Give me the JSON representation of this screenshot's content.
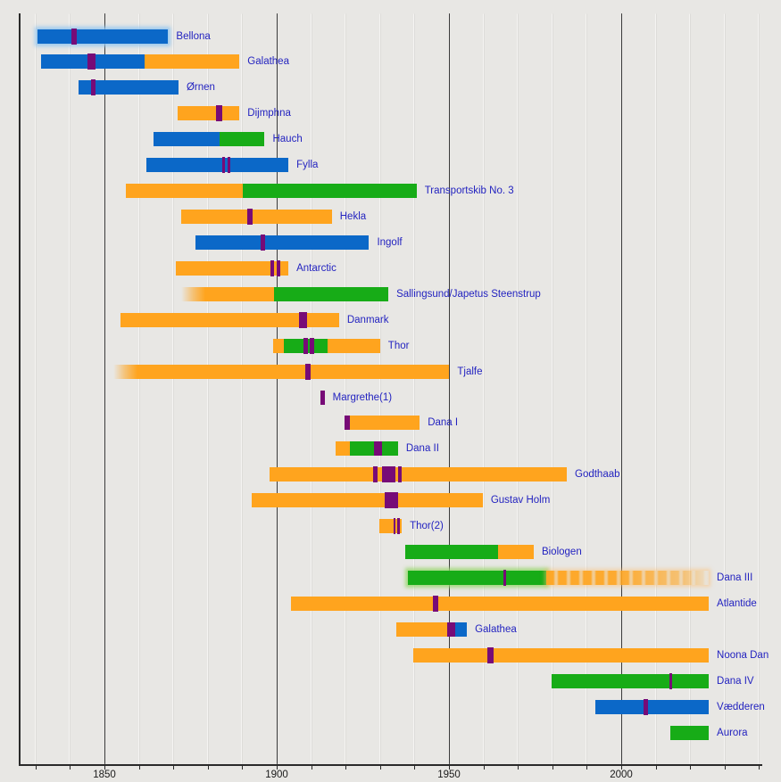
{
  "chart_data": {
    "type": "bar",
    "subtype": "timeline-gantt",
    "title": "",
    "xlabel": "",
    "ylabel": "",
    "x_axis": {
      "range": [
        1825,
        2041
      ],
      "minor_tick_step": 10,
      "minor_range": [
        1830,
        2040
      ],
      "major_ticks": [
        {
          "year": 1850,
          "label": "1850"
        },
        {
          "year": 1900,
          "label": "1900"
        },
        {
          "year": 1950,
          "label": "1950"
        },
        {
          "year": 2000,
          "label": "2000"
        }
      ],
      "grid": true
    },
    "colors": {
      "blue": "#0b68c8",
      "orange": "#ffa41e",
      "green": "#17ac17",
      "purple": "#770b77",
      "label_text": "#2323c0",
      "background": "#e8e7e4"
    },
    "rows": [
      {
        "name": "Bellona",
        "segments": [
          {
            "color": "blue",
            "from": 1830.5,
            "to": 1868.5,
            "halo": true
          }
        ],
        "markers": [
          {
            "from": 1840.5,
            "to": 1842
          }
        ]
      },
      {
        "name": "Galathea",
        "segments": [
          {
            "color": "blue",
            "from": 1831.5,
            "to": 1861.6
          },
          {
            "color": "orange",
            "from": 1861.6,
            "to": 1889.2
          }
        ],
        "markers": [
          {
            "from": 1845.2,
            "to": 1847.5
          }
        ]
      },
      {
        "name": "Ørnen",
        "segments": [
          {
            "color": "blue",
            "from": 1842.5,
            "to": 1871.5
          }
        ],
        "markers": [
          {
            "from": 1846,
            "to": 1847.3
          }
        ]
      },
      {
        "name": "Dijmphna",
        "segments": [
          {
            "color": "orange",
            "from": 1871.3,
            "to": 1889.2
          }
        ],
        "markers": [
          {
            "from": 1882.5,
            "to": 1884.2
          }
        ]
      },
      {
        "name": "Hauch",
        "segments": [
          {
            "color": "blue",
            "from": 1864.2,
            "to": 1883.3
          },
          {
            "color": "green",
            "from": 1883.3,
            "to": 1896.5
          }
        ],
        "markers": []
      },
      {
        "name": "Fylla",
        "segments": [
          {
            "color": "blue",
            "from": 1862.2,
            "to": 1903.4
          }
        ],
        "markers": [
          {
            "from": 1884.3,
            "to": 1885.1
          },
          {
            "from": 1885.8,
            "to": 1886.6
          }
        ]
      },
      {
        "name": "Transportskib No. 3",
        "segments": [
          {
            "color": "orange",
            "from": 1856.1,
            "to": 1890.2
          },
          {
            "color": "green",
            "from": 1890.2,
            "to": 1940.6
          }
        ],
        "markers": []
      },
      {
        "name": "Hekla",
        "segments": [
          {
            "color": "orange",
            "from": 1872.4,
            "to": 1916
          }
        ],
        "markers": [
          {
            "from": 1891.5,
            "to": 1893.1
          }
        ]
      },
      {
        "name": "Ingolf",
        "segments": [
          {
            "color": "blue",
            "from": 1876.5,
            "to": 1926.8
          }
        ],
        "markers": [
          {
            "from": 1895.3,
            "to": 1896.7
          }
        ]
      },
      {
        "name": "Antarctic",
        "segments": [
          {
            "color": "orange",
            "from": 1870.8,
            "to": 1903.4
          }
        ],
        "markers": [
          {
            "from": 1898.3,
            "to": 1899.3
          },
          {
            "from": 1900,
            "to": 1901
          }
        ]
      },
      {
        "name": "Sallingsund/Japetus Steenstrup",
        "segments": [
          {
            "color": "orange",
            "from": 1872.3,
            "to": 1899.1,
            "fade_left": true
          },
          {
            "color": "green",
            "from": 1899.1,
            "to": 1932.4
          }
        ],
        "markers": []
      },
      {
        "name": "Danmark",
        "segments": [
          {
            "color": "orange",
            "from": 1854.7,
            "to": 1918.1
          }
        ],
        "markers": [
          {
            "from": 1906.5,
            "to": 1908.8
          }
        ]
      },
      {
        "name": "Thor",
        "segments": [
          {
            "color": "orange",
            "from": 1898.9,
            "to": 1902
          },
          {
            "color": "green",
            "from": 1902,
            "to": 1914.7
          },
          {
            "color": "orange",
            "from": 1914.7,
            "to": 1930
          }
        ],
        "markers": [
          {
            "from": 1907.8,
            "to": 1909
          },
          {
            "from": 1909.6,
            "to": 1910.9
          }
        ]
      },
      {
        "name": "Tjalfe",
        "segments": [
          {
            "color": "orange",
            "from": 1852.5,
            "to": 1950.1,
            "fade_left": true
          }
        ],
        "markers": [
          {
            "from": 1908.4,
            "to": 1909.9
          }
        ]
      },
      {
        "name": "Margrethe(1)",
        "segments": [
          {
            "color": "purple",
            "from": 1912.7,
            "to": 1913.9
          }
        ],
        "markers": []
      },
      {
        "name": "Dana I",
        "segments": [
          {
            "color": "purple",
            "from": 1919.7,
            "to": 1921.3
          },
          {
            "color": "orange",
            "from": 1921.3,
            "to": 1941.5
          }
        ],
        "markers": []
      },
      {
        "name": "Dana II",
        "segments": [
          {
            "color": "orange",
            "from": 1917.1,
            "to": 1921.2
          },
          {
            "color": "green",
            "from": 1921.2,
            "to": 1928.3
          },
          {
            "color": "purple",
            "from": 1928.3,
            "to": 1930.6
          },
          {
            "color": "green",
            "from": 1930.6,
            "to": 1935.2
          }
        ],
        "markers": []
      },
      {
        "name": "Godthaab",
        "segments": [
          {
            "color": "orange",
            "from": 1898,
            "to": 1984.2
          }
        ],
        "markers": [
          {
            "from": 1928,
            "to": 1929.2
          },
          {
            "from": 1930.5,
            "to": 1934.4
          },
          {
            "from": 1935.2,
            "to": 1936.4
          }
        ]
      },
      {
        "name": "Gustav Holm",
        "segments": [
          {
            "color": "orange",
            "from": 1892.7,
            "to": 1959.8
          }
        ],
        "markers": [
          {
            "from": 1931.3,
            "to": 1935.2
          }
        ]
      },
      {
        "name": "Thor(2)",
        "segments": [
          {
            "color": "orange",
            "from": 1929.8,
            "to": 1936.3
          }
        ],
        "markers": [
          {
            "from": 1933.9,
            "to": 1934.5
          },
          {
            "from": 1935.1,
            "to": 1935.8
          }
        ]
      },
      {
        "name": "Biologen",
        "segments": [
          {
            "color": "green",
            "from": 1937.3,
            "to": 1964.2
          },
          {
            "color": "orange",
            "from": 1964.2,
            "to": 1974.6
          }
        ],
        "markers": []
      },
      {
        "name": "Dana III",
        "segments": [
          {
            "color": "green",
            "from": 1938,
            "to": 1978.2,
            "halo": true
          },
          {
            "color": "orange",
            "from": 1978.2,
            "to": 2025.4,
            "dapple_fade_right": true
          }
        ],
        "markers": [
          {
            "from": 1965.9,
            "to": 1966.5
          }
        ]
      },
      {
        "name": "Atlantide",
        "segments": [
          {
            "color": "orange",
            "from": 1904.1,
            "to": 2025.4
          }
        ],
        "markers": [
          {
            "from": 1945.4,
            "to": 1946.9
          }
        ]
      },
      {
        "name": "Galathea",
        "segments": [
          {
            "color": "orange",
            "from": 1934.7,
            "to": 1949.5
          },
          {
            "color": "purple",
            "from": 1949.5,
            "to": 1951.8
          },
          {
            "color": "blue",
            "from": 1951.8,
            "to": 1955.2
          }
        ],
        "markers": []
      },
      {
        "name": "Noona Dan",
        "segments": [
          {
            "color": "orange",
            "from": 1939.6,
            "to": 2025.4
          }
        ],
        "markers": [
          {
            "from": 1961.1,
            "to": 1963
          }
        ]
      },
      {
        "name": "Dana IV",
        "segments": [
          {
            "color": "green",
            "from": 1979.9,
            "to": 2025.4
          }
        ],
        "markers": [
          {
            "from": 2014,
            "to": 2014.6
          }
        ]
      },
      {
        "name": "Vædderen",
        "segments": [
          {
            "color": "blue",
            "from": 1992.4,
            "to": 2025.4
          }
        ],
        "markers": [
          {
            "from": 2006.6,
            "to": 2007.8
          }
        ]
      },
      {
        "name": "Aurora",
        "segments": [
          {
            "color": "green",
            "from": 2014.2,
            "to": 2025.4
          }
        ],
        "markers": []
      }
    ]
  }
}
